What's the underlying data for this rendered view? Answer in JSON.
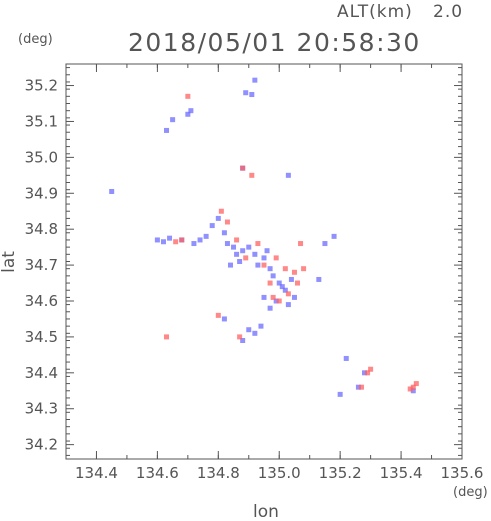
{
  "header": {
    "altitude_label": "ALT(km)",
    "altitude_value": "2.0",
    "datetime": "2018/05/01 20:58:30"
  },
  "chart_data": {
    "type": "scatter",
    "title": "2018/05/01 20:58:30",
    "xlabel": "lon",
    "ylabel": "lat",
    "x_unit": "(deg)",
    "y_unit": "(deg)",
    "xlim": [
      134.3,
      135.6
    ],
    "ylim": [
      34.16,
      35.26
    ],
    "x_ticks": [
      "134.4",
      "134.6",
      "134.8",
      "135.0",
      "135.2",
      "135.4",
      "135.6"
    ],
    "x_tick_values": [
      134.4,
      134.6,
      134.8,
      135.0,
      135.2,
      135.4,
      135.6
    ],
    "y_ticks": [
      "35.2",
      "35.1",
      "35.0",
      "34.9",
      "34.8",
      "34.7",
      "34.6",
      "34.5",
      "34.4",
      "34.3",
      "34.2"
    ],
    "y_tick_values": [
      35.2,
      35.1,
      35.0,
      34.9,
      34.8,
      34.7,
      34.6,
      34.5,
      34.4,
      34.3,
      34.2
    ],
    "grid": false,
    "colors": {
      "negative": "#6b6bff",
      "positive": "#ff6060",
      "axis": "#555555"
    },
    "series": [
      {
        "color": "#6b6bff",
        "points": [
          [
            134.45,
            34.905
          ],
          [
            134.63,
            35.075
          ],
          [
            134.65,
            35.105
          ],
          [
            134.7,
            35.12
          ],
          [
            134.71,
            35.13
          ],
          [
            134.92,
            35.215
          ],
          [
            134.89,
            35.18
          ],
          [
            134.91,
            35.175
          ],
          [
            135.03,
            34.95
          ],
          [
            134.88,
            34.97
          ],
          [
            134.6,
            34.77
          ],
          [
            134.62,
            34.765
          ],
          [
            134.64,
            34.775
          ],
          [
            134.68,
            34.77
          ],
          [
            134.72,
            34.76
          ],
          [
            134.74,
            34.77
          ],
          [
            134.76,
            34.78
          ],
          [
            134.78,
            34.81
          ],
          [
            134.8,
            34.83
          ],
          [
            134.82,
            34.79
          ],
          [
            134.83,
            34.76
          ],
          [
            134.85,
            34.75
          ],
          [
            134.86,
            34.73
          ],
          [
            134.87,
            34.71
          ],
          [
            134.88,
            34.74
          ],
          [
            134.9,
            34.75
          ],
          [
            134.92,
            34.73
          ],
          [
            134.93,
            34.7
          ],
          [
            134.95,
            34.72
          ],
          [
            134.97,
            34.69
          ],
          [
            134.98,
            34.67
          ],
          [
            135.0,
            34.65
          ],
          [
            135.01,
            34.64
          ],
          [
            135.02,
            34.63
          ],
          [
            135.04,
            34.66
          ],
          [
            135.05,
            34.61
          ],
          [
            134.99,
            34.6
          ],
          [
            134.97,
            34.58
          ],
          [
            134.95,
            34.61
          ],
          [
            135.03,
            34.59
          ],
          [
            134.82,
            34.55
          ],
          [
            134.9,
            34.52
          ],
          [
            134.92,
            34.51
          ],
          [
            134.88,
            34.49
          ],
          [
            134.94,
            34.53
          ],
          [
            135.15,
            34.76
          ],
          [
            135.18,
            34.78
          ],
          [
            135.13,
            34.66
          ],
          [
            135.22,
            34.44
          ],
          [
            135.26,
            34.36
          ],
          [
            135.2,
            34.34
          ],
          [
            135.28,
            34.4
          ],
          [
            135.44,
            34.35
          ],
          [
            134.96,
            34.74
          ],
          [
            134.84,
            34.7
          ]
        ]
      },
      {
        "color": "#ff6060",
        "points": [
          [
            134.7,
            35.17
          ],
          [
            134.88,
            34.97
          ],
          [
            134.91,
            34.95
          ],
          [
            134.66,
            34.765
          ],
          [
            134.68,
            34.77
          ],
          [
            134.81,
            34.85
          ],
          [
            134.83,
            34.82
          ],
          [
            134.86,
            34.77
          ],
          [
            134.89,
            34.72
          ],
          [
            134.93,
            34.76
          ],
          [
            134.95,
            34.7
          ],
          [
            134.99,
            34.72
          ],
          [
            135.02,
            34.69
          ],
          [
            135.05,
            34.68
          ],
          [
            135.06,
            34.65
          ],
          [
            135.07,
            34.76
          ],
          [
            135.08,
            34.69
          ],
          [
            135.0,
            34.6
          ],
          [
            134.98,
            34.61
          ],
          [
            135.03,
            34.62
          ],
          [
            134.63,
            34.5
          ],
          [
            134.8,
            34.56
          ],
          [
            134.87,
            34.5
          ],
          [
            135.3,
            34.41
          ],
          [
            135.29,
            34.4
          ],
          [
            135.44,
            34.36
          ],
          [
            135.45,
            34.37
          ],
          [
            135.43,
            34.355
          ],
          [
            135.27,
            34.36
          ],
          [
            134.97,
            34.65
          ]
        ]
      }
    ]
  }
}
